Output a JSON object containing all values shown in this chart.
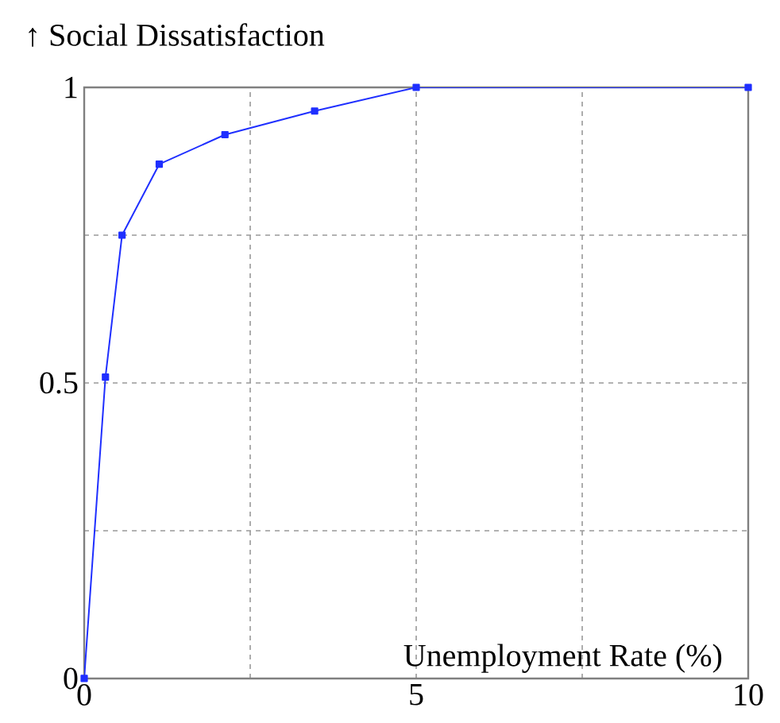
{
  "chart_data": {
    "type": "line",
    "ylabel": "↑ Social Dissatisfaction",
    "xlabel": "Unemployment Rate (%)",
    "x": [
      0,
      0.32,
      0.57,
      1.13,
      2.12,
      3.47,
      5,
      10
    ],
    "series": [
      {
        "color": "#1f2fff",
        "values": [
          0,
          0.51,
          0.75,
          0.87,
          0.92,
          0.96,
          1.0,
          1.0
        ]
      }
    ],
    "xlim": [
      0,
      10
    ],
    "ylim": [
      0,
      1
    ],
    "xticks": [
      0,
      {
        "value": 2.5,
        "label": null
      },
      5,
      {
        "value": 7.5,
        "label": null
      },
      10
    ],
    "yticks": [
      0,
      {
        "value": 0.25,
        "label": null
      },
      0.5,
      {
        "value": 0.75,
        "label": null
      },
      1
    ],
    "grid": true,
    "marker": "square",
    "line_style": "solid"
  }
}
